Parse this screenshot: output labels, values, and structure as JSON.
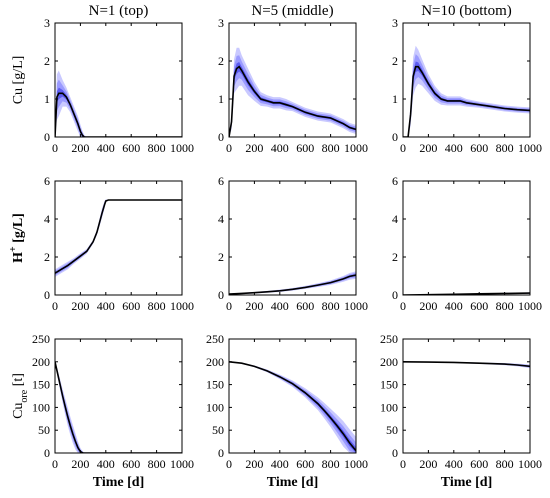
{
  "colors": {
    "band_outer": "#c9c9ff",
    "band_mid": "#9a9aff",
    "band_inner": "#5c5cf0",
    "mean": "#000000"
  },
  "chart_data": [
    {
      "type": "area",
      "row": 0,
      "col": 0,
      "title": "N=1 (top)",
      "ylabel": "Cu [g/L]",
      "xlabel": "",
      "xlim": [
        0,
        1000
      ],
      "ylim": [
        0,
        3
      ],
      "xticks": [
        0,
        200,
        400,
        600,
        800,
        1000
      ],
      "yticks": [
        0,
        1,
        2,
        3
      ],
      "series": [
        {
          "x": [
            0,
            15,
            30,
            60,
            90,
            120,
            150,
            180,
            200,
            215,
            230,
            250,
            300,
            400,
            600,
            800,
            1000
          ],
          "mean": [
            0,
            1.05,
            1.15,
            1.15,
            1.05,
            0.85,
            0.6,
            0.35,
            0.15,
            0.05,
            0,
            0,
            0,
            0,
            0,
            0,
            0
          ],
          "spread": [
            0,
            0.6,
            0.6,
            0.35,
            0.25,
            0.2,
            0.2,
            0.2,
            0.18,
            0.12,
            0.05,
            0,
            0,
            0,
            0,
            0,
            0
          ]
        }
      ]
    },
    {
      "type": "area",
      "row": 0,
      "col": 1,
      "title": "N=5 (middle)",
      "ylabel": "",
      "xlabel": "",
      "xlim": [
        0,
        1000
      ],
      "ylim": [
        0,
        3
      ],
      "xticks": [
        0,
        200,
        400,
        600,
        800,
        1000
      ],
      "yticks": [
        0,
        1,
        2,
        3
      ],
      "series": [
        {
          "x": [
            0,
            20,
            40,
            60,
            80,
            100,
            150,
            200,
            250,
            300,
            350,
            400,
            450,
            500,
            600,
            700,
            800,
            900,
            950,
            1000
          ],
          "mean": [
            0,
            0.4,
            1.6,
            1.8,
            1.85,
            1.75,
            1.45,
            1.2,
            1.0,
            0.95,
            0.9,
            0.9,
            0.85,
            0.8,
            0.65,
            0.55,
            0.5,
            0.35,
            0.25,
            0.2
          ],
          "spread": [
            0,
            0.2,
            0.45,
            0.55,
            0.5,
            0.4,
            0.35,
            0.25,
            0.18,
            0.15,
            0.15,
            0.15,
            0.15,
            0.12,
            0.12,
            0.12,
            0.12,
            0.12,
            0.12,
            0.12
          ]
        }
      ]
    },
    {
      "type": "area",
      "row": 0,
      "col": 2,
      "title": "N=10 (bottom)",
      "ylabel": "",
      "xlabel": "",
      "xlim": [
        0,
        1000
      ],
      "ylim": [
        0,
        3
      ],
      "xticks": [
        0,
        200,
        400,
        600,
        800,
        1000
      ],
      "yticks": [
        0,
        1,
        2,
        3
      ],
      "series": [
        {
          "x": [
            0,
            40,
            60,
            80,
            100,
            120,
            150,
            200,
            250,
            300,
            350,
            400,
            450,
            500,
            600,
            700,
            800,
            900,
            1000
          ],
          "mean": [
            0,
            0,
            0.6,
            1.6,
            1.85,
            1.85,
            1.7,
            1.4,
            1.15,
            1.0,
            0.95,
            0.95,
            0.95,
            0.9,
            0.85,
            0.8,
            0.75,
            0.72,
            0.7
          ],
          "spread": [
            0,
            0,
            0.3,
            0.5,
            0.55,
            0.45,
            0.35,
            0.25,
            0.2,
            0.15,
            0.12,
            0.12,
            0.12,
            0.1,
            0.08,
            0.08,
            0.08,
            0.08,
            0.08
          ]
        }
      ]
    },
    {
      "type": "area",
      "row": 1,
      "col": 0,
      "title": "",
      "ylabel": "H+ [g/L]",
      "xlabel": "",
      "xlim": [
        0,
        1000
      ],
      "ylim": [
        0,
        6
      ],
      "xticks": [
        0,
        200,
        400,
        600,
        800,
        1000
      ],
      "yticks": [
        0,
        2,
        4,
        6
      ],
      "series": [
        {
          "x": [
            0,
            50,
            100,
            150,
            200,
            250,
            300,
            330,
            350,
            370,
            390,
            400,
            420,
            450,
            500,
            600,
            700,
            800,
            900,
            1000
          ],
          "mean": [
            1.15,
            1.35,
            1.55,
            1.8,
            2.05,
            2.3,
            2.8,
            3.3,
            3.8,
            4.3,
            4.75,
            4.95,
            5.0,
            5.0,
            5.0,
            5.0,
            5.0,
            5.0,
            5.0,
            5.0
          ],
          "spread": [
            0.2,
            0.2,
            0.2,
            0.15,
            0.15,
            0.12,
            0.1,
            0.15,
            0.2,
            0.25,
            0.2,
            0.08,
            0,
            0,
            0,
            0,
            0,
            0,
            0,
            0
          ]
        }
      ]
    },
    {
      "type": "area",
      "row": 1,
      "col": 1,
      "title": "",
      "ylabel": "",
      "xlabel": "",
      "xlim": [
        0,
        1000
      ],
      "ylim": [
        0,
        6
      ],
      "xticks": [
        0,
        200,
        400,
        600,
        800,
        1000
      ],
      "yticks": [
        0,
        2,
        4,
        6
      ],
      "series": [
        {
          "x": [
            0,
            100,
            200,
            300,
            400,
            500,
            600,
            700,
            800,
            900,
            950,
            1000
          ],
          "mean": [
            0.05,
            0.08,
            0.12,
            0.17,
            0.22,
            0.3,
            0.4,
            0.52,
            0.65,
            0.85,
            0.98,
            1.05
          ],
          "spread": [
            0.02,
            0.03,
            0.04,
            0.05,
            0.06,
            0.07,
            0.08,
            0.1,
            0.12,
            0.15,
            0.18,
            0.2
          ]
        }
      ]
    },
    {
      "type": "area",
      "row": 1,
      "col": 2,
      "title": "",
      "ylabel": "",
      "xlabel": "",
      "xlim": [
        0,
        1000
      ],
      "ylim": [
        0,
        6
      ],
      "xticks": [
        0,
        200,
        400,
        600,
        800,
        1000
      ],
      "yticks": [
        0,
        2,
        4,
        6
      ],
      "series": [
        {
          "x": [
            0,
            200,
            400,
            600,
            800,
            1000
          ],
          "mean": [
            0.0,
            0.02,
            0.04,
            0.06,
            0.08,
            0.1
          ],
          "spread": [
            0.01,
            0.01,
            0.02,
            0.02,
            0.03,
            0.04
          ]
        }
      ]
    },
    {
      "type": "area",
      "row": 2,
      "col": 0,
      "title": "",
      "ylabel": "Cuore [t]",
      "xlabel": "Time [d]",
      "xlim": [
        0,
        1000
      ],
      "ylim": [
        0,
        250
      ],
      "xticks": [
        0,
        200,
        400,
        600,
        800,
        1000
      ],
      "yticks": [
        0,
        50,
        100,
        150,
        200,
        250
      ],
      "series": [
        {
          "x": [
            0,
            20,
            40,
            60,
            80,
            100,
            120,
            140,
            160,
            180,
            200,
            220,
            240,
            300,
            400,
            600,
            800,
            1000
          ],
          "mean": [
            200,
            175,
            150,
            125,
            102,
            80,
            60,
            42,
            26,
            12,
            3,
            0,
            0,
            0,
            0,
            0,
            0,
            0
          ],
          "spread": [
            0,
            8,
            12,
            15,
            18,
            20,
            20,
            20,
            18,
            14,
            8,
            3,
            0,
            0,
            0,
            0,
            0,
            0
          ]
        }
      ]
    },
    {
      "type": "area",
      "row": 2,
      "col": 1,
      "title": "",
      "ylabel": "",
      "xlabel": "Time [d]",
      "xlim": [
        0,
        1000
      ],
      "ylim": [
        0,
        250
      ],
      "xticks": [
        0,
        200,
        400,
        600,
        800,
        1000
      ],
      "yticks": [
        0,
        50,
        100,
        150,
        200,
        250
      ],
      "series": [
        {
          "x": [
            0,
            100,
            200,
            300,
            400,
            500,
            600,
            700,
            750,
            800,
            850,
            900,
            950,
            1000
          ],
          "mean": [
            200,
            197,
            190,
            180,
            167,
            152,
            132,
            108,
            93,
            77,
            60,
            42,
            22,
            5
          ],
          "spread": [
            0,
            1,
            2,
            3,
            5,
            7,
            10,
            14,
            17,
            20,
            24,
            28,
            30,
            30
          ]
        }
      ]
    },
    {
      "type": "area",
      "row": 2,
      "col": 2,
      "title": "",
      "ylabel": "",
      "xlabel": "Time [d]",
      "xlim": [
        0,
        1000
      ],
      "ylim": [
        0,
        250
      ],
      "xticks": [
        0,
        200,
        400,
        600,
        800,
        1000
      ],
      "yticks": [
        0,
        50,
        100,
        150,
        200,
        250
      ],
      "series": [
        {
          "x": [
            0,
            200,
            400,
            600,
            800,
            900,
            1000
          ],
          "mean": [
            200,
            199.5,
            198.5,
            197,
            195,
            193,
            190
          ],
          "spread": [
            0,
            0.5,
            1,
            1.5,
            2.5,
            3,
            4
          ]
        }
      ]
    }
  ]
}
